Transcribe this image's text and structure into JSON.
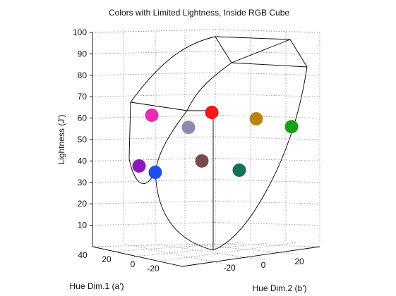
{
  "chart_data": {
    "type": "scatter",
    "title": "Colors with Limited Lightness, Inside RGB Cube",
    "zlabel": "Lightness (J')",
    "xlabel": "Hue Dim.1 (a')",
    "ylabel": "Hue Dim.2 (b')",
    "zlim": [
      0,
      100
    ],
    "z_ticks": [
      "10",
      "20",
      "30",
      "40",
      "50",
      "60",
      "70",
      "80",
      "90",
      "100"
    ],
    "x_ticks": [
      "40",
      "20",
      "0",
      "-20"
    ],
    "y_ticks": [
      "-20",
      "0",
      "20"
    ],
    "grid": true,
    "points": [
      {
        "label": "magenta",
        "color": "#e62cb4",
        "lightness": 62
      },
      {
        "label": "red",
        "color": "#f01818",
        "lightness": 64
      },
      {
        "label": "gold",
        "color": "#b8860b",
        "lightness": 61
      },
      {
        "label": "green",
        "color": "#19a019",
        "lightness": 57
      },
      {
        "label": "grey-lavender",
        "color": "#8e8aae",
        "lightness": 57
      },
      {
        "label": "purple",
        "color": "#8a1ab8",
        "lightness": 39
      },
      {
        "label": "blue",
        "color": "#1e50f0",
        "lightness": 36
      },
      {
        "label": "brown",
        "color": "#7a4a4a",
        "lightness": 41
      },
      {
        "label": "teal",
        "color": "#16705a",
        "lightness": 37
      }
    ]
  }
}
